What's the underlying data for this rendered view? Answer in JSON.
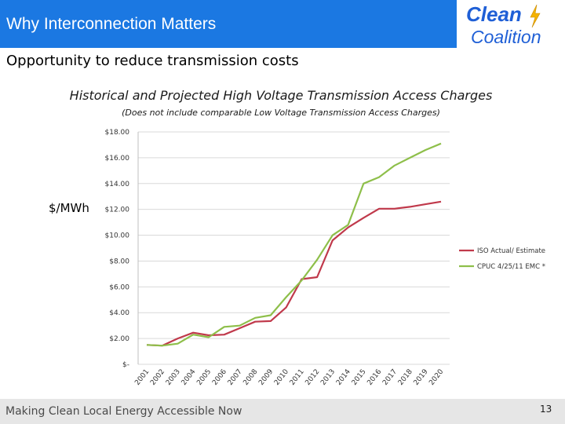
{
  "slide": {
    "title": "Why Interconnection Matters",
    "subtitle": "Opportunity to reduce transmission costs",
    "footer": "Making Clean Local Energy Accessible Now",
    "page_number": "13",
    "logo": {
      "line1": "Clean",
      "line2": "Coalition"
    }
  },
  "colors": {
    "title_bar": "#1b78e2",
    "logo_blue": "#1f5fd6",
    "iso_line": "#c0394b",
    "cpuc_line": "#8ebf4a",
    "grid": "#d9d9d9"
  },
  "chart_data": {
    "type": "line",
    "title": "Historical and Projected High Voltage Transmission Access Charges",
    "subtitle": "(Does not include comparable Low Voltage Transmission Access Charges)",
    "ylabel": "$/MWh",
    "xlabel": "",
    "ylim": [
      0,
      18
    ],
    "yticks": [
      0,
      2,
      4,
      6,
      8,
      10,
      12,
      14,
      16,
      18
    ],
    "ytick_labels": [
      "$-",
      "$2.00",
      "$4.00",
      "$6.00",
      "$8.00",
      "$10.00",
      "$12.00",
      "$14.00",
      "$16.00",
      "$18.00"
    ],
    "categories": [
      "2001",
      "2002",
      "2003",
      "2004",
      "2005",
      "2006",
      "2007",
      "2008",
      "2009",
      "2010",
      "2011",
      "2012",
      "2013",
      "2014",
      "2015",
      "2016",
      "2017",
      "2018",
      "2019",
      "2020"
    ],
    "grid": true,
    "legend_position": "right",
    "series": [
      {
        "name": "ISO Actual/ Estimate",
        "color": "#c0394b",
        "values": [
          1.5,
          1.45,
          2.0,
          2.45,
          2.25,
          2.3,
          2.8,
          3.3,
          3.35,
          4.4,
          6.6,
          6.75,
          9.6,
          10.6,
          11.35,
          12.05,
          12.05,
          12.2,
          12.4,
          12.6
        ]
      },
      {
        "name": "CPUC 4/25/11 EMC *",
        "color": "#8ebf4a",
        "values": [
          1.5,
          1.45,
          1.6,
          2.3,
          2.1,
          2.9,
          3.0,
          3.6,
          3.8,
          5.2,
          6.5,
          8.1,
          10.0,
          10.8,
          14.0,
          14.5,
          15.4,
          16.0,
          16.6,
          17.1
        ]
      }
    ]
  }
}
